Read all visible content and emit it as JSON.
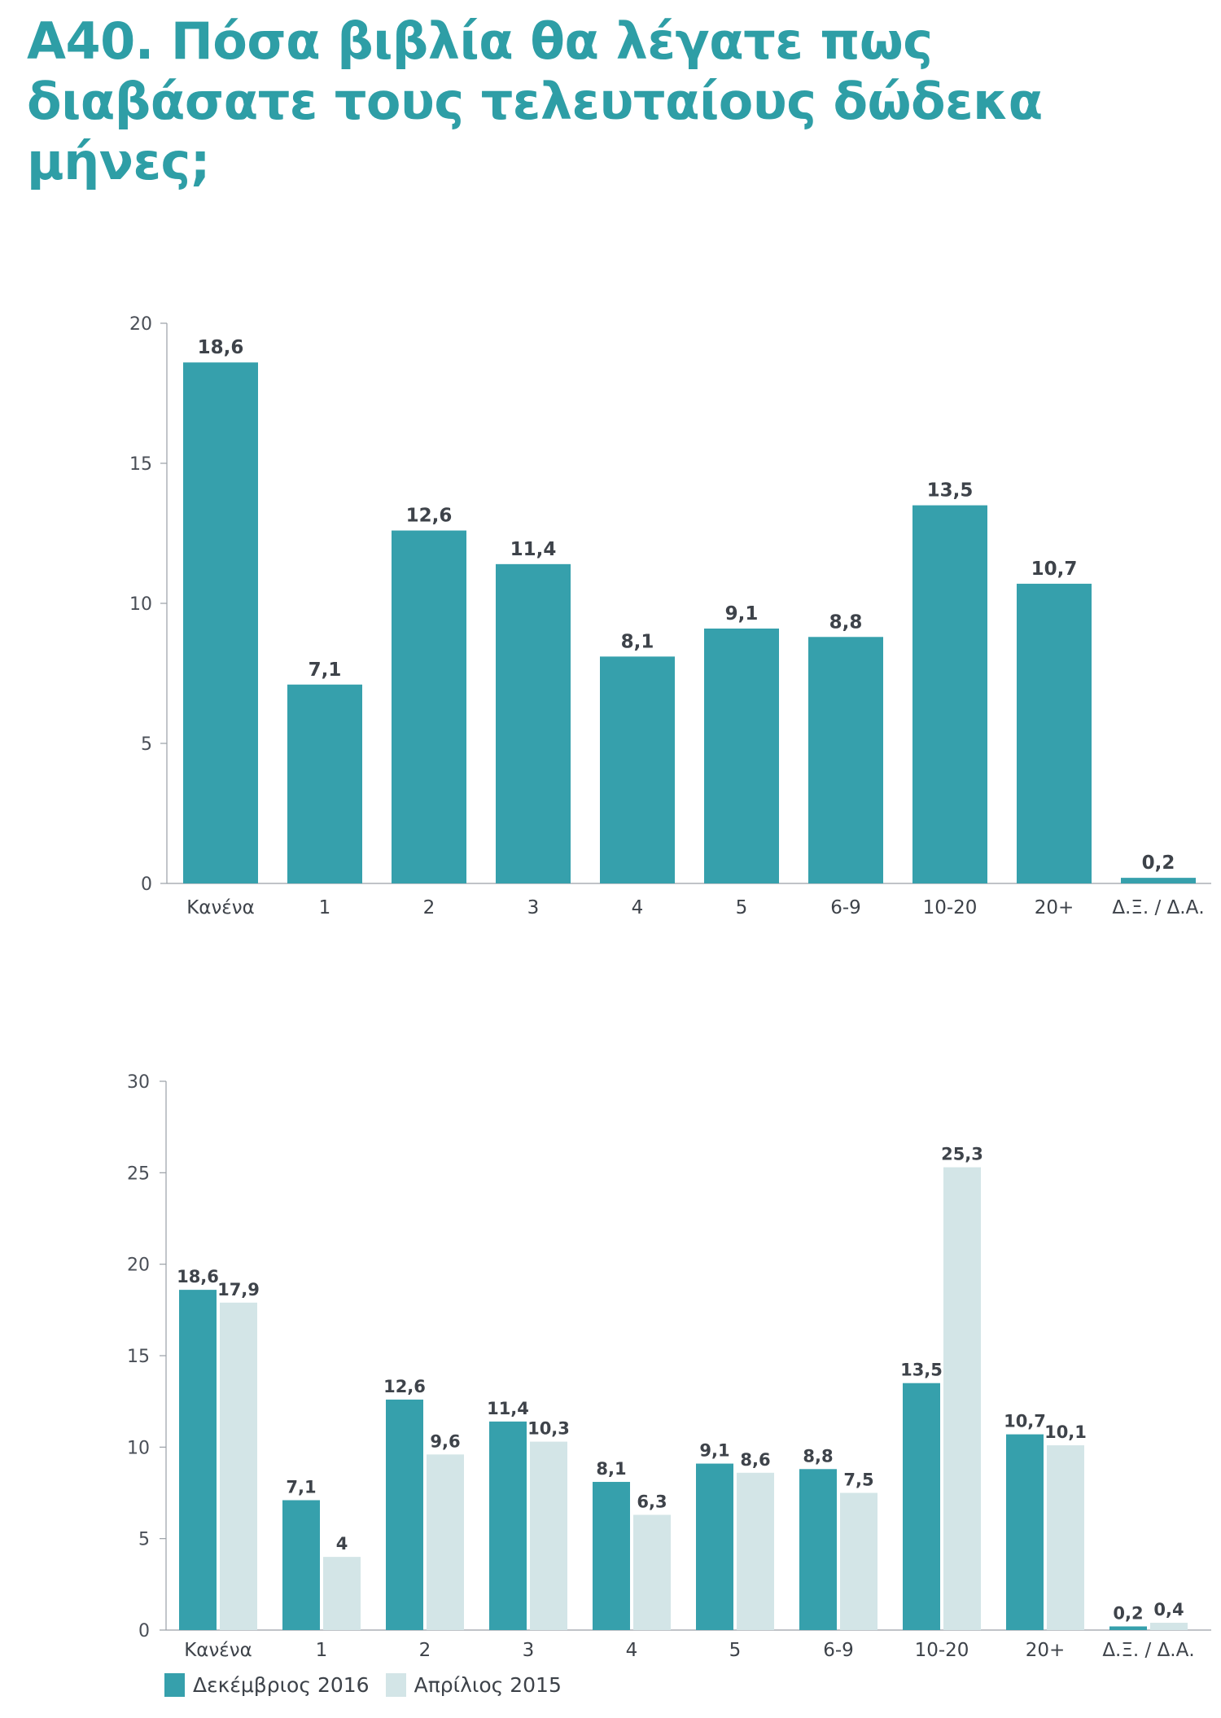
{
  "title": "Α40. Πόσα βιβλία θα λέγατε πως διαβάσατε τους τελευταίους δώδεκα μήνες;",
  "colors": {
    "title": "#2e9ea6",
    "teal": "#36a0ac",
    "light": "#d3e5e7",
    "text": "#3e434a"
  },
  "legend": {
    "items": [
      {
        "label": "Δεκέμβριος 2016",
        "color": "#36a0ac"
      },
      {
        "label": "Απρίλιος 2015",
        "color": "#d3e5e7"
      }
    ]
  },
  "chart_data": [
    {
      "type": "bar",
      "categories": [
        "Κανένα",
        "1",
        "2",
        "3",
        "4",
        "5",
        "6-9",
        "10-20",
        "20+",
        "Δ.Ξ. / Δ.Α."
      ],
      "values": [
        18.6,
        7.1,
        12.6,
        11.4,
        8.1,
        9.1,
        8.8,
        13.5,
        10.7,
        0.2
      ],
      "data_labels": [
        "18,6",
        "7,1",
        "12,6",
        "11,4",
        "8,1",
        "9,1",
        "8,8",
        "13,5",
        "10,7",
        "0,2"
      ],
      "ylim": [
        0,
        20
      ],
      "yticks": [
        0,
        5,
        10,
        15,
        20
      ],
      "grid": false,
      "color": "#36a0ac"
    },
    {
      "type": "bar",
      "categories": [
        "Κανένα",
        "1",
        "2",
        "3",
        "4",
        "5",
        "6-9",
        "10-20",
        "20+",
        "Δ.Ξ. / Δ.Α."
      ],
      "series": [
        {
          "name": "Δεκέμβριος 2016",
          "values": [
            18.6,
            7.1,
            12.6,
            11.4,
            8.1,
            9.1,
            8.8,
            13.5,
            10.7,
            0.2
          ],
          "data_labels": [
            "18,6",
            "7,1",
            "12,6",
            "11,4",
            "8,1",
            "9,1",
            "8,8",
            "13,5",
            "10,7",
            "0,2"
          ],
          "color": "#36a0ac"
        },
        {
          "name": "Απρίλιος 2015",
          "values": [
            17.9,
            4,
            9.6,
            10.3,
            6.3,
            8.6,
            7.5,
            25.3,
            10.1,
            0.4
          ],
          "data_labels": [
            "17,9",
            "4",
            "9,6",
            "10,3",
            "6,3",
            "8,6",
            "7,5",
            "25,3",
            "10,1",
            "0,4"
          ],
          "color": "#d3e5e7"
        }
      ],
      "ylim": [
        0,
        30
      ],
      "yticks": [
        0,
        5,
        10,
        15,
        20,
        25,
        30
      ],
      "grid": false,
      "legend_position": "bottom-left"
    }
  ]
}
